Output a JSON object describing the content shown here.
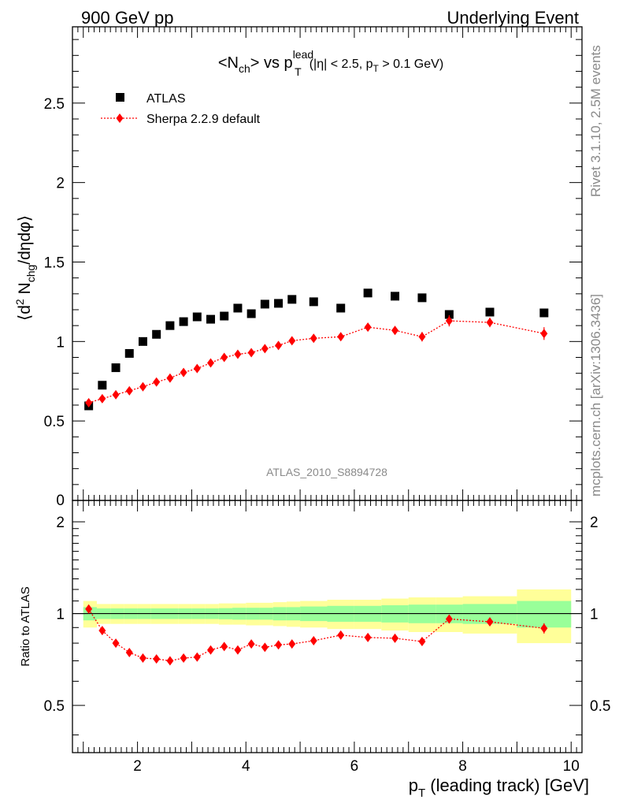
{
  "header": {
    "left": "900 GeV pp",
    "right": "Underlying Event"
  },
  "side": {
    "rivet": "Rivet 3.1.10,  2.5M events",
    "mcplots": "mcplots.cern.ch [arXiv:1306.3436]"
  },
  "analysis_tag": "ATLAS_2010_S8894728",
  "chart_data": [
    {
      "type": "scatter",
      "title": "<N_ch> vs p_T^lead (|η| < 2.5, p_T > 0.1 GeV)",
      "title_parts": {
        "pre": "<N",
        "sub1": "ch",
        "mid": "> vs p",
        "sup": "lead",
        "sub2": "T",
        "post_a": "(|η| < 2.5, p",
        "post_sub": "T",
        "post_b": " > 0.1 GeV)"
      },
      "ylabel": "⟨d² N_chg/dηdφ⟩",
      "ylabel_parts": {
        "a": "⟨d",
        "sup": "2",
        "b": " N",
        "sub": "chg",
        "c": "/dηdφ⟩"
      },
      "xlim": [
        0.8,
        10.2
      ],
      "ylim": [
        0,
        2.98
      ],
      "y_ticks": [
        0.5,
        1,
        1.5,
        2,
        2.5
      ],
      "y_tick_labels": [
        "0.5",
        "1",
        "1.5",
        "2",
        "2.5"
      ],
      "y_zero_label": "0",
      "legend_position": "top-left",
      "legend": [
        "ATLAS",
        "Sherpa 2.2.9 default"
      ],
      "series": [
        {
          "name": "ATLAS",
          "marker": "square",
          "color": "#000000",
          "x": [
            1.1,
            1.35,
            1.6,
            1.85,
            2.1,
            2.35,
            2.6,
            2.85,
            3.1,
            3.35,
            3.6,
            3.85,
            4.1,
            4.35,
            4.6,
            4.85,
            5.25,
            5.75,
            6.25,
            6.75,
            7.25,
            7.75,
            8.5,
            9.5
          ],
          "y": [
            0.595,
            0.725,
            0.835,
            0.925,
            1.0,
            1.045,
            1.1,
            1.125,
            1.155,
            1.14,
            1.16,
            1.21,
            1.175,
            1.235,
            1.24,
            1.265,
            1.25,
            1.21,
            1.305,
            1.285,
            1.275,
            1.17,
            1.185,
            1.18
          ]
        },
        {
          "name": "Sherpa 2.2.9 default",
          "marker": "diamond",
          "color": "#ff0000",
          "x": [
            1.1,
            1.35,
            1.6,
            1.85,
            2.1,
            2.35,
            2.6,
            2.85,
            3.1,
            3.35,
            3.6,
            3.85,
            4.1,
            4.35,
            4.6,
            4.85,
            5.25,
            5.75,
            6.25,
            6.75,
            7.25,
            7.75,
            8.5,
            9.5
          ],
          "y": [
            0.615,
            0.64,
            0.665,
            0.69,
            0.715,
            0.745,
            0.77,
            0.805,
            0.83,
            0.865,
            0.9,
            0.92,
            0.93,
            0.955,
            0.975,
            1.005,
            1.02,
            1.03,
            1.09,
            1.07,
            1.03,
            1.13,
            1.12,
            1.05
          ],
          "yerr": [
            0.008,
            0.008,
            0.008,
            0.008,
            0.008,
            0.01,
            0.01,
            0.01,
            0.01,
            0.01,
            0.012,
            0.012,
            0.012,
            0.012,
            0.012,
            0.015,
            0.015,
            0.015,
            0.02,
            0.025,
            0.03,
            0.035,
            0.03,
            0.04
          ]
        }
      ]
    },
    {
      "type": "scatter",
      "ylabel": "Ratio to ATLAS",
      "xlabel": "p_T (leading track) [GeV]",
      "xlabel_parts": {
        "a": "p",
        "sub": "T",
        "b": " (leading track) [GeV]"
      },
      "xlim": [
        0.8,
        10.2
      ],
      "ylim": [
        0.35,
        2.35
      ],
      "x_ticks": [
        2,
        4,
        6,
        8,
        10
      ],
      "x_tick_labels": [
        "2",
        "4",
        "6",
        "8",
        "10"
      ],
      "y_ticks": [
        0.5,
        1,
        2
      ],
      "y_tick_labels": [
        "0.5",
        "1",
        "2"
      ],
      "bands": {
        "bin_edges": [
          1.0,
          1.25,
          1.5,
          1.75,
          2.0,
          2.25,
          2.5,
          2.75,
          3.0,
          3.25,
          3.5,
          3.75,
          4.0,
          4.25,
          4.5,
          4.75,
          5.0,
          5.5,
          6.0,
          6.5,
          7.0,
          7.5,
          8.0,
          9.0,
          10.0
        ],
        "green_halfwidth": [
          0.05,
          0.04,
          0.04,
          0.04,
          0.04,
          0.04,
          0.04,
          0.04,
          0.04,
          0.04,
          0.042,
          0.045,
          0.045,
          0.045,
          0.05,
          0.05,
          0.055,
          0.06,
          0.06,
          0.065,
          0.07,
          0.07,
          0.075,
          0.1
        ],
        "yellow_halfwidth": [
          0.1,
          0.075,
          0.075,
          0.075,
          0.075,
          0.075,
          0.075,
          0.075,
          0.075,
          0.075,
          0.08,
          0.08,
          0.085,
          0.085,
          0.09,
          0.095,
          0.1,
          0.11,
          0.11,
          0.12,
          0.13,
          0.13,
          0.14,
          0.2
        ],
        "green_color": "#99ff99",
        "yellow_color": "#ffff99"
      },
      "series": [
        {
          "name": "Sherpa 2.2.9 default",
          "marker": "diamond",
          "color": "#ff0000",
          "x": [
            1.1,
            1.35,
            1.6,
            1.85,
            2.1,
            2.35,
            2.6,
            2.85,
            3.1,
            3.35,
            3.6,
            3.85,
            4.1,
            4.35,
            4.6,
            4.85,
            5.25,
            5.75,
            6.25,
            6.75,
            7.25,
            7.75,
            8.5,
            9.5
          ],
          "y": [
            1.035,
            0.88,
            0.8,
            0.745,
            0.715,
            0.71,
            0.7,
            0.715,
            0.72,
            0.76,
            0.78,
            0.76,
            0.795,
            0.775,
            0.79,
            0.795,
            0.815,
            0.85,
            0.835,
            0.83,
            0.81,
            0.96,
            0.94,
            0.895
          ],
          "yerr": [
            0.012,
            0.01,
            0.01,
            0.01,
            0.01,
            0.01,
            0.01,
            0.01,
            0.01,
            0.01,
            0.012,
            0.012,
            0.012,
            0.012,
            0.012,
            0.013,
            0.013,
            0.014,
            0.016,
            0.02,
            0.025,
            0.03,
            0.025,
            0.035
          ]
        }
      ]
    }
  ]
}
